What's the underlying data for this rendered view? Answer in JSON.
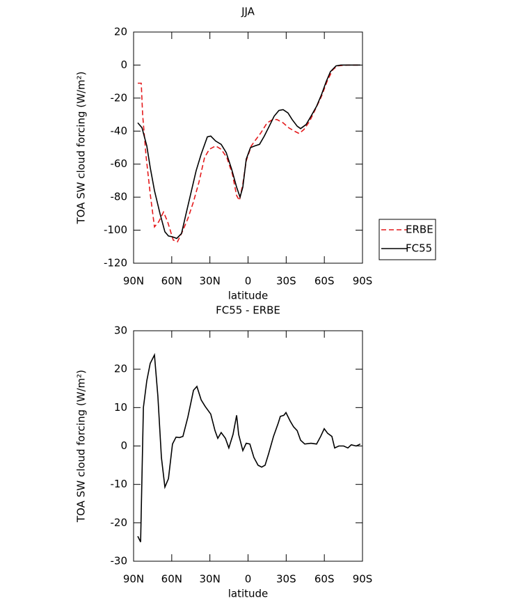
{
  "chart_data": [
    {
      "type": "line",
      "title": "JJA",
      "xlabel": "latitude",
      "ylabel": "TOA SW cloud forcing (W/m²)",
      "xlim": [
        90,
        -90
      ],
      "ylim": [
        -120,
        20
      ],
      "xticks": [
        {
          "value": 90,
          "label": "90N"
        },
        {
          "value": 60,
          "label": "60N"
        },
        {
          "value": 30,
          "label": "30N"
        },
        0,
        {
          "value": -30,
          "label": "30S"
        },
        {
          "value": -60,
          "label": "60S"
        },
        {
          "value": -90,
          "label": "90S"
        }
      ],
      "yticks": [
        -120,
        -100,
        -80,
        -60,
        -40,
        -20,
        0,
        20
      ],
      "legend": "right",
      "series": [
        {
          "name": "ERBE",
          "color": "#e41a1c",
          "dashed": true,
          "x": [
            86.7,
            84,
            82.9,
            80.2,
            76.9,
            73.6,
            70.3,
            66.5,
            63.2,
            58.8,
            55.5,
            51.7,
            47.3,
            43,
            38.6,
            34.2,
            30.4,
            25.5,
            21.1,
            16.7,
            12.3,
            9,
            6.8,
            4.1,
            1.4,
            -2.5,
            -6.3,
            -10.1,
            -15,
            -19.4,
            -22.7,
            -27.6,
            -32,
            -36.4,
            -40.2,
            -44,
            -48.4,
            -52.8,
            -57.7,
            -62.1,
            -66.5,
            -70.3,
            -78.5,
            -88.3
          ],
          "values": [
            -11,
            -11,
            -30,
            -55,
            -78,
            -98,
            -95,
            -89,
            -95,
            -106,
            -107,
            -101,
            -93,
            -83,
            -71,
            -56,
            -51,
            -49,
            -51,
            -56,
            -66,
            -79,
            -82,
            -72,
            -58,
            -49,
            -45,
            -41,
            -35,
            -33,
            -33,
            -35,
            -38,
            -40,
            -41.5,
            -39,
            -34,
            -27,
            -19,
            -10,
            -3,
            -0.5,
            0,
            0
          ]
        },
        {
          "name": "FC55",
          "color": "#000000",
          "dashed": false,
          "x": [
            86.7,
            83.4,
            79.6,
            76.9,
            73.6,
            69.2,
            65.4,
            62.6,
            59.4,
            56.1,
            52.3,
            49,
            45.1,
            40.8,
            36.9,
            32,
            29.3,
            25.5,
            21.1,
            17.2,
            12.9,
            9,
            6.3,
            4.1,
            1.4,
            -1.9,
            -5.2,
            -9,
            -12.8,
            -16.7,
            -20.5,
            -24.3,
            -27.6,
            -31.4,
            -34.7,
            -38.6,
            -41.3,
            -45.7,
            -49.5,
            -53.9,
            -57.7,
            -61.5,
            -64.8,
            -69.2,
            -73,
            -81.2,
            -88.3
          ],
          "values": [
            -35,
            -38,
            -49,
            -62,
            -76,
            -90,
            -101,
            -103.5,
            -104,
            -105,
            -102,
            -91,
            -78,
            -64,
            -54,
            -43.5,
            -43,
            -46,
            -48,
            -53,
            -63,
            -74,
            -80,
            -74,
            -57,
            -50,
            -49,
            -48,
            -43,
            -37,
            -31,
            -27.5,
            -27,
            -29,
            -33,
            -37,
            -38.5,
            -36,
            -31,
            -25,
            -18,
            -10,
            -4,
            -0.5,
            0,
            0,
            0
          ]
        }
      ]
    },
    {
      "type": "line",
      "title": "FC55 - ERBE",
      "xlabel": "latitude",
      "ylabel": "TOA SW cloud forcing (W/m²)",
      "xlim": [
        90,
        -90
      ],
      "ylim": [
        -30,
        30
      ],
      "xticks": [
        {
          "value": 90,
          "label": "90N"
        },
        {
          "value": 60,
          "label": "60N"
        },
        {
          "value": 30,
          "label": "30N"
        },
        0,
        {
          "value": -30,
          "label": "30S"
        },
        {
          "value": -60,
          "label": "60S"
        },
        {
          "value": -90,
          "label": "90S"
        }
      ],
      "yticks": [
        -30,
        -20,
        -10,
        0,
        10,
        20,
        30
      ],
      "color": "#000000",
      "x": [
        86.7,
        84.5,
        82.3,
        79.6,
        76.9,
        73.6,
        70.9,
        68.1,
        65.4,
        62.6,
        59.4,
        56.6,
        53.9,
        51.2,
        47.3,
        42.9,
        40.2,
        36.9,
        33.7,
        29.3,
        26,
        23.8,
        21.1,
        17.8,
        15.1,
        11.8,
        9,
        7.4,
        4.1,
        1.4,
        -1.4,
        -4.6,
        -7.9,
        -10.7,
        -13.4,
        -16.2,
        -20,
        -23.8,
        -25.4,
        -28.2,
        -29.8,
        -33.1,
        -35.8,
        -38.6,
        -41.3,
        -44.6,
        -49.5,
        -53.9,
        -57.1,
        -59.9,
        -62.6,
        -65.9,
        -68.1,
        -71.4,
        -75.2,
        -78.5,
        -81.2,
        -85.1,
        -88.3
      ],
      "values": [
        -23.5,
        -25,
        10,
        17,
        21.5,
        23.7,
        13,
        -3,
        -10.7,
        -8.5,
        0.5,
        2.3,
        2.2,
        2.5,
        7.5,
        14.5,
        15.5,
        12,
        10.3,
        8.3,
        4,
        2,
        3.5,
        2,
        -0.5,
        3,
        8,
        3,
        -1.2,
        0.7,
        0.5,
        -3,
        -5,
        -5.5,
        -5,
        -2,
        2.5,
        6,
        7.7,
        8,
        8.7,
        6.5,
        5,
        4,
        1.5,
        0.5,
        0.7,
        0.5,
        2.5,
        4.5,
        3.3,
        2.5,
        -0.5,
        0,
        0,
        -0.5,
        0.3,
        0,
        0.5
      ]
    }
  ]
}
